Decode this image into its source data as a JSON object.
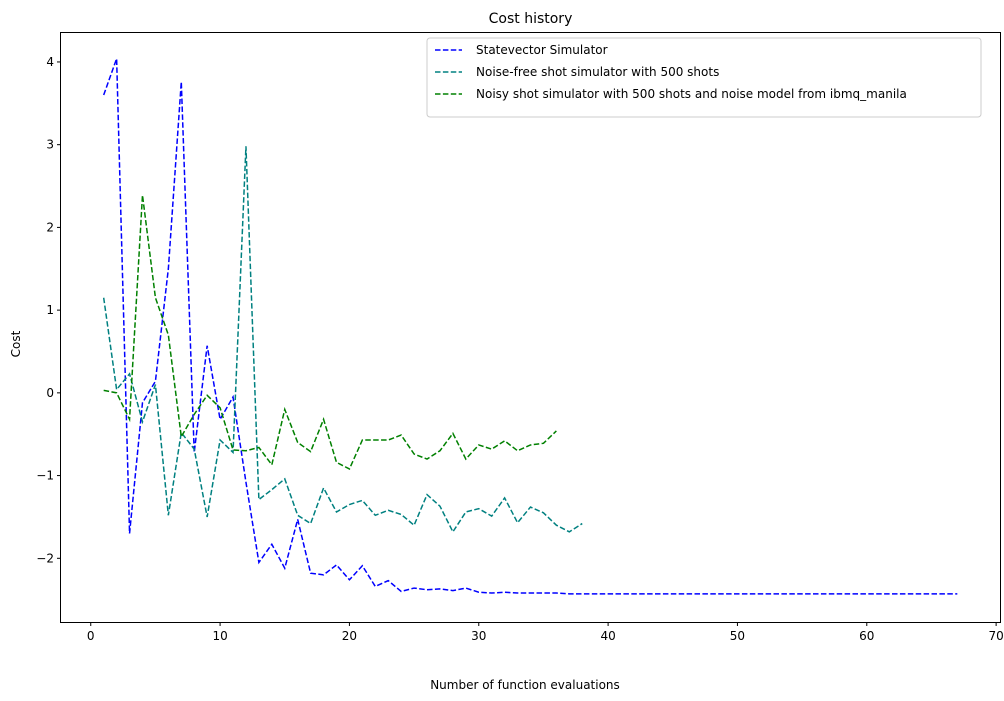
{
  "chart_data": {
    "type": "line",
    "title": "Cost history",
    "xlabel": "Number of function evaluations",
    "ylabel": "Cost",
    "xlim": [
      -2.3,
      70.3
    ],
    "ylim": [
      -2.77,
      4.35
    ],
    "xticks": [
      0,
      10,
      20,
      30,
      40,
      50,
      60,
      70
    ],
    "yticks": [
      -2,
      -1,
      0,
      1,
      2,
      3,
      4
    ],
    "ytick_labels": [
      "−2",
      "−1",
      "0",
      "1",
      "2",
      "3",
      "4"
    ],
    "grid": false,
    "legend_position": "top-right",
    "series": [
      {
        "name": "Statevector Simulator",
        "color": "#0000ff",
        "style": "dashed",
        "x": [
          1,
          2,
          3,
          4,
          5,
          6,
          7,
          8,
          9,
          10,
          11,
          12,
          13,
          14,
          15,
          16,
          17,
          18,
          19,
          20,
          21,
          22,
          23,
          24,
          25,
          26,
          27,
          28,
          29,
          30,
          31,
          32,
          33,
          34,
          35,
          36,
          37,
          38,
          39,
          40,
          41,
          42,
          43,
          44,
          45,
          46,
          47,
          48,
          49,
          50,
          51,
          52,
          53,
          54,
          55,
          56,
          57,
          58,
          59,
          60,
          61,
          62,
          63,
          64,
          65,
          66,
          67
        ],
        "y": [
          3.6,
          4.04,
          -1.7,
          -0.12,
          0.14,
          1.5,
          3.76,
          -0.72,
          0.57,
          -0.32,
          -0.05,
          -1.08,
          -2.05,
          -1.83,
          -2.12,
          -1.53,
          -2.18,
          -2.2,
          -2.08,
          -2.26,
          -2.09,
          -2.34,
          -2.27,
          -2.4,
          -2.36,
          -2.38,
          -2.37,
          -2.39,
          -2.36,
          -2.41,
          -2.42,
          -2.41,
          -2.42,
          -2.42,
          -2.42,
          -2.42,
          -2.43,
          -2.43,
          -2.43,
          -2.43,
          -2.43,
          -2.43,
          -2.43,
          -2.43,
          -2.43,
          -2.43,
          -2.43,
          -2.43,
          -2.43,
          -2.43,
          -2.43,
          -2.43,
          -2.43,
          -2.43,
          -2.43,
          -2.43,
          -2.43,
          -2.43,
          -2.43,
          -2.43,
          -2.43,
          -2.43,
          -2.43,
          -2.43,
          -2.43,
          -2.43,
          -2.43
        ]
      },
      {
        "name": "Noise-free shot simulator with 500 shots",
        "color": "#008080",
        "style": "dashed",
        "x": [
          1,
          2,
          3,
          4,
          5,
          6,
          7,
          8,
          9,
          10,
          11,
          12,
          13,
          14,
          15,
          16,
          17,
          18,
          19,
          20,
          21,
          22,
          23,
          24,
          25,
          26,
          27,
          28,
          29,
          30,
          31,
          32,
          33,
          34,
          35,
          36,
          37,
          38
        ],
        "y": [
          1.15,
          0.04,
          0.23,
          -0.35,
          0.1,
          -1.48,
          -0.48,
          -0.68,
          -1.5,
          -0.57,
          -0.72,
          2.98,
          -1.29,
          -1.17,
          -1.04,
          -1.48,
          -1.58,
          -1.15,
          -1.44,
          -1.35,
          -1.3,
          -1.48,
          -1.42,
          -1.47,
          -1.6,
          -1.23,
          -1.37,
          -1.68,
          -1.44,
          -1.4,
          -1.49,
          -1.27,
          -1.57,
          -1.38,
          -1.45,
          -1.6,
          -1.68,
          -1.58
        ]
      },
      {
        "name": "Noisy shot simulator with 500 shots and noise model from ibmq_manila",
        "color": "#008000",
        "style": "dashed",
        "x": [
          1,
          2,
          3,
          4,
          5,
          6,
          7,
          8,
          9,
          10,
          11,
          12,
          13,
          14,
          15,
          16,
          17,
          18,
          19,
          20,
          21,
          22,
          23,
          24,
          25,
          26,
          27,
          28,
          29,
          30,
          31,
          32,
          33,
          34,
          35,
          36
        ],
        "y": [
          0.03,
          0.0,
          -0.32,
          2.39,
          1.15,
          0.7,
          -0.53,
          -0.26,
          -0.03,
          -0.18,
          -0.69,
          -0.7,
          -0.66,
          -0.87,
          -0.2,
          -0.6,
          -0.71,
          -0.32,
          -0.84,
          -0.92,
          -0.57,
          -0.57,
          -0.57,
          -0.51,
          -0.74,
          -0.8,
          -0.7,
          -0.49,
          -0.8,
          -0.63,
          -0.68,
          -0.58,
          -0.7,
          -0.63,
          -0.61,
          -0.46
        ]
      }
    ]
  }
}
